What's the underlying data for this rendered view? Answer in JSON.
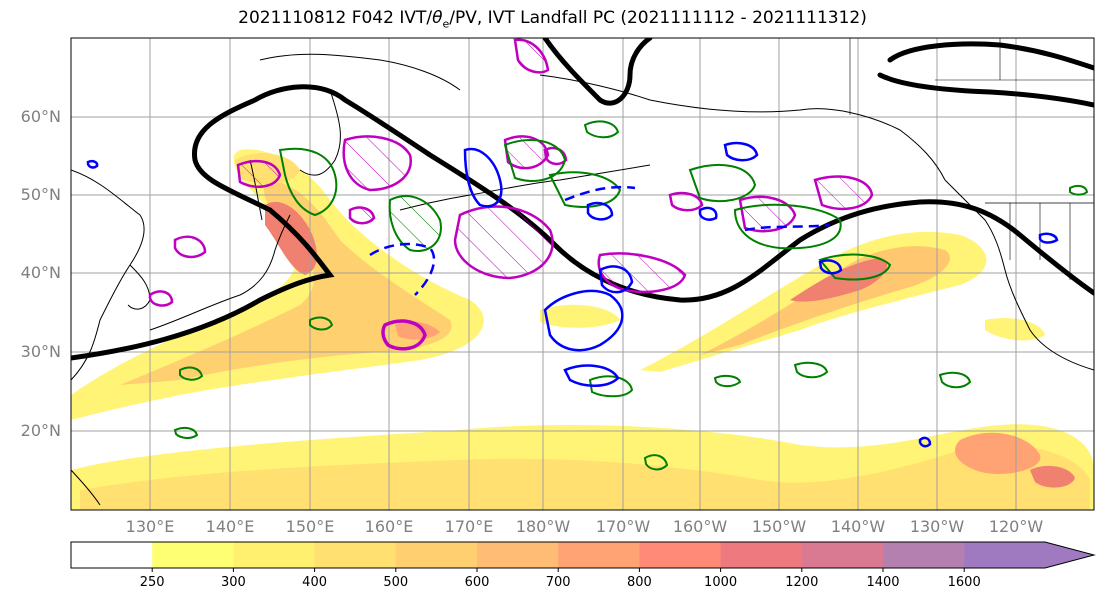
{
  "title": "2021110812 F042 IVT/θe/PV, IVT Landfall PC (2021111112 - 2021111312)",
  "title_parts": {
    "pre": "2021110812 F042 IVT/",
    "theta": "θ",
    "sub": "e",
    "post": "/PV, IVT Landfall PC (2021111112 - 2021111312)"
  },
  "lat_labels": [
    "60°N",
    "50°N",
    "40°N",
    "30°N",
    "20°N"
  ],
  "lon_labels": [
    "130°E",
    "140°E",
    "150°E",
    "160°E",
    "170°E",
    "180°W",
    "170°W",
    "160°W",
    "150°W",
    "140°W",
    "130°W",
    "120°W"
  ],
  "colorbar": {
    "ticks": [
      "250",
      "300",
      "400",
      "500",
      "600",
      "700",
      "800",
      "1000",
      "1200",
      "1400",
      "1600"
    ],
    "colors": [
      "#ffff74",
      "#fff070",
      "#ffe070",
      "#ffcf70",
      "#ffbc74",
      "#ffa274",
      "#ff8a78",
      "#ee7a80",
      "#d97a92",
      "#b480b0",
      "#a07ac0"
    ],
    "extend": "max"
  },
  "colors": {
    "ivt_low": "#fff476",
    "ivt_mid": "#ffc870",
    "ivt_high": "#f08070",
    "thick_contour": "#000000",
    "pv_contour": "#c000c0",
    "theta_green": "#008000",
    "theta_blue": "#0000ff",
    "grid": "#a0a0a0"
  }
}
